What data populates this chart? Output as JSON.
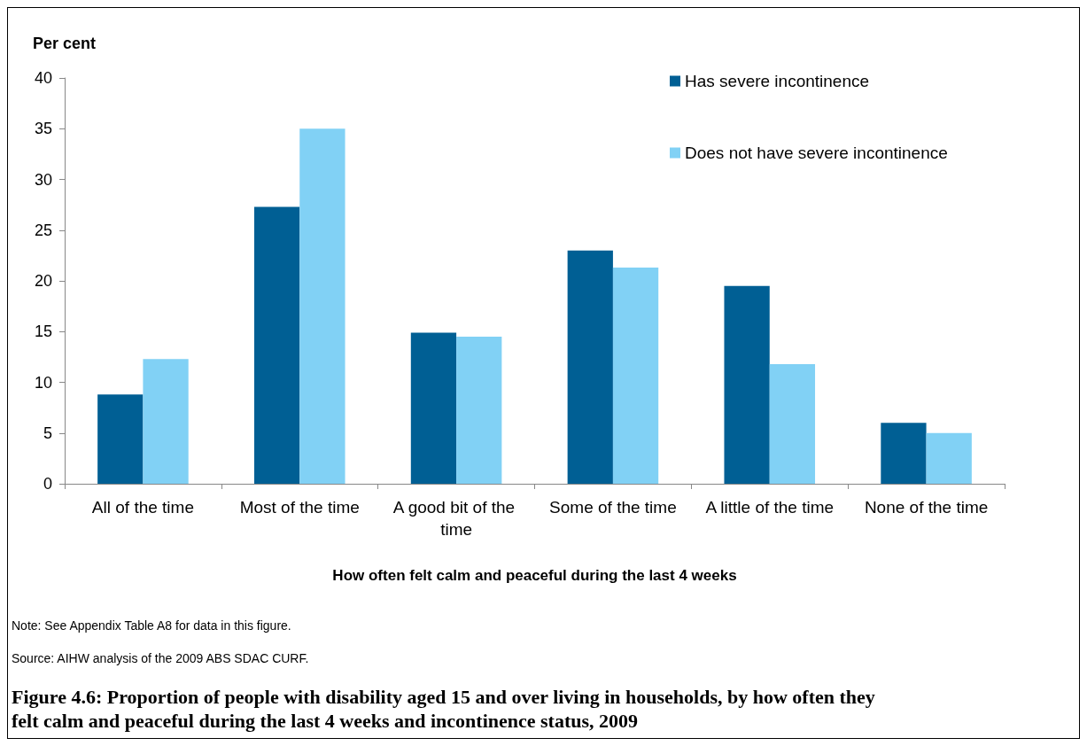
{
  "chart_data": {
    "type": "bar",
    "title": "Figure 4.6: Proportion of people with disability aged 15 and over living in households, by how often they felt calm and peaceful during the last 4 weeks and incontinence status, 2009",
    "xlabel": "How often felt calm and peaceful during the last 4 weeks",
    "ylabel": "Per cent",
    "categories": [
      "All of the time",
      "Most of the time",
      "A good bit of the time",
      "Some of the time",
      "A little of the time",
      "None of the time"
    ],
    "series": [
      {
        "name": "Has severe incontinence",
        "color": "#005f94",
        "values": [
          8.8,
          27.3,
          14.9,
          23.0,
          19.5,
          6.0
        ]
      },
      {
        "name": "Does not have severe incontinence",
        "color": "#81d1f5",
        "values": [
          12.3,
          35.0,
          14.5,
          21.3,
          11.8,
          5.0
        ]
      }
    ],
    "ylim": [
      0,
      40
    ],
    "yticks": [
      0,
      5,
      10,
      15,
      20,
      25,
      30,
      35,
      40
    ],
    "grid": false,
    "legend": "top right",
    "annotations": [
      "Note: See Appendix Table A8 for data in this figure.",
      "Source: AIHW analysis of the 2009 ABS SDAC CURF."
    ]
  }
}
